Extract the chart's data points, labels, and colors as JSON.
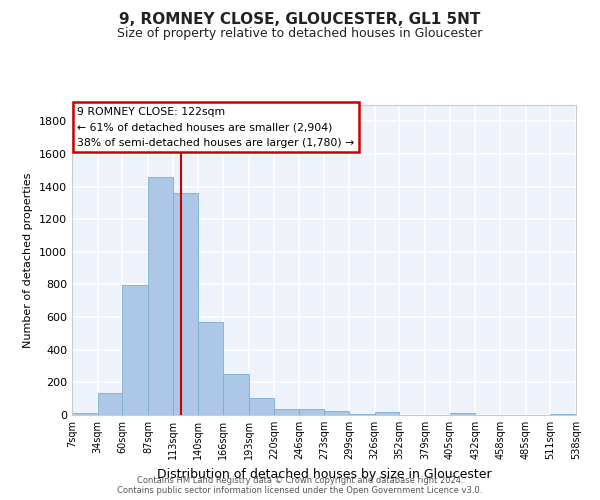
{
  "title": "9, ROMNEY CLOSE, GLOUCESTER, GL1 5NT",
  "subtitle": "Size of property relative to detached houses in Gloucester",
  "xlabel": "Distribution of detached houses by size in Gloucester",
  "ylabel": "Number of detached properties",
  "bar_color": "#adc8e6",
  "bar_edge_color": "#7aadd4",
  "bg_color": "#eef2fb",
  "grid_color": "#ffffff",
  "marker_value": 122,
  "marker_color": "#cc0000",
  "annotation_title": "9 ROMNEY CLOSE: 122sqm",
  "annotation_line1": "← 61% of detached houses are smaller (2,904)",
  "annotation_line2": "38% of semi-detached houses are larger (1,780) →",
  "bin_edges": [
    7,
    34,
    60,
    87,
    113,
    140,
    166,
    193,
    220,
    246,
    273,
    299,
    326,
    352,
    379,
    405,
    432,
    458,
    485,
    511,
    538
  ],
  "bin_labels": [
    "7sqm",
    "34sqm",
    "60sqm",
    "87sqm",
    "113sqm",
    "140sqm",
    "166sqm",
    "193sqm",
    "220sqm",
    "246sqm",
    "273sqm",
    "299sqm",
    "326sqm",
    "352sqm",
    "379sqm",
    "405sqm",
    "432sqm",
    "458sqm",
    "485sqm",
    "511sqm",
    "538sqm"
  ],
  "bar_heights": [
    15,
    135,
    795,
    1460,
    1360,
    570,
    250,
    105,
    35,
    35,
    22,
    7,
    20,
    0,
    0,
    12,
    0,
    0,
    0,
    5
  ],
  "ylim": [
    0,
    1900
  ],
  "yticks": [
    0,
    200,
    400,
    600,
    800,
    1000,
    1200,
    1400,
    1600,
    1800
  ],
  "footer1": "Contains HM Land Registry data © Crown copyright and database right 2024.",
  "footer2": "Contains public sector information licensed under the Open Government Licence v3.0."
}
